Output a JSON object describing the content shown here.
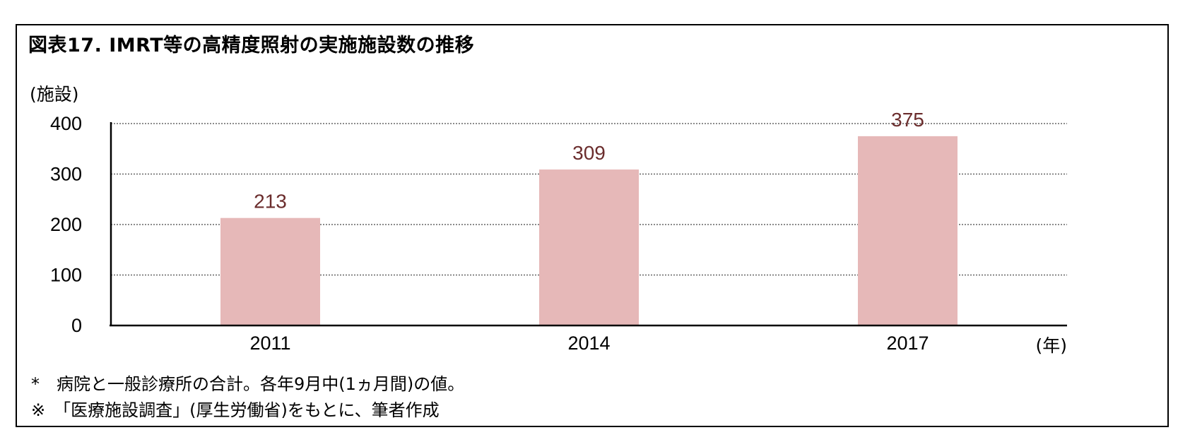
{
  "title": "図表17. IMRT等の高精度照射の実施施設数の推移",
  "notes": [
    "*　病院と一般診療所の合計。各年9月中(1ヵ月間)の値。",
    "※　「医療施設調査」(厚生労働省)をもとに、筆者作成"
  ],
  "chart_data": {
    "type": "bar",
    "categories": [
      "2011",
      "2014",
      "2017"
    ],
    "values": [
      213,
      309,
      375
    ],
    "data_labels": [
      "213",
      "309",
      "375"
    ],
    "title": "図表17. IMRT等の高精度照射の実施施設数の推移",
    "xlabel": "(年)",
    "ylabel": "(施設)",
    "ylim": [
      0,
      400
    ],
    "yticks": [
      0,
      100,
      200,
      300,
      400
    ],
    "grid": true,
    "grid_style": "dotted",
    "bar_color": "#e6b8b8",
    "label_color": "#6b2d2d",
    "legend": "none"
  }
}
